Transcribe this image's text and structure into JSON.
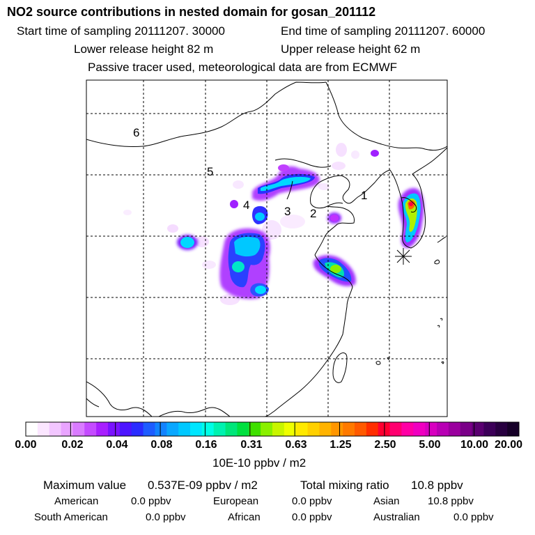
{
  "title": "NO2 source contributions in nested domain for gosan_201112",
  "header": {
    "start": "Start time of sampling 20111207. 30000",
    "end": "End time of sampling 20111207. 60000",
    "lower": "Lower release height   82 m",
    "upper": "Upper release height   62 m",
    "note": "Passive tracer used, meteorological data are from ECMWF"
  },
  "map": {
    "region_labels": [
      "1",
      "2",
      "3",
      "4",
      "5",
      "6"
    ],
    "receptor_marker": "asterisk-icon"
  },
  "colorbar": {
    "ticks": [
      "0.00",
      "0.02",
      "0.04",
      "0.08",
      "0.16",
      "0.31",
      "0.63",
      "1.25",
      "2.50",
      "5.00",
      "10.00",
      "20.00"
    ],
    "unit": "10E-10 ppbv / m2",
    "colors": [
      "#ffffff",
      "#fbe6ff",
      "#f2c6ff",
      "#e9a4ff",
      "#d97bff",
      "#c44bff",
      "#a81fff",
      "#7a12ff",
      "#4c14ff",
      "#2a2cff",
      "#1e5cff",
      "#1283ff",
      "#0aa7ff",
      "#00c8ff",
      "#00e6ff",
      "#00ffe6",
      "#00f2b0",
      "#00e67a",
      "#00e040",
      "#3fe000",
      "#8af000",
      "#c8f500",
      "#efff00",
      "#ffe900",
      "#ffd000",
      "#ffb300",
      "#ff9600",
      "#ff7a00",
      "#ff5a00",
      "#ff2e00",
      "#ff0030",
      "#ff0070",
      "#ff00a5",
      "#f000c0",
      "#d800c0",
      "#b800b4",
      "#9a009e",
      "#7a0088",
      "#5a0070",
      "#3c0058",
      "#280040",
      "#160028"
    ]
  },
  "footer": {
    "max_label": "Maximum value",
    "max_value": "0.537E-09 ppbv / m2",
    "total_label": "Total mixing ratio",
    "total_value": "10.8 ppbv",
    "rows": [
      {
        "label": "American",
        "value": "0.0 ppbv"
      },
      {
        "label": "European",
        "value": "0.0 ppbv"
      },
      {
        "label": "Asian",
        "value": "10.8 ppbv"
      },
      {
        "label": "South American",
        "value": "0.0 ppbv"
      },
      {
        "label": "African",
        "value": "0.0 ppbv"
      },
      {
        "label": "Australian",
        "value": "0.0 ppbv"
      }
    ]
  }
}
